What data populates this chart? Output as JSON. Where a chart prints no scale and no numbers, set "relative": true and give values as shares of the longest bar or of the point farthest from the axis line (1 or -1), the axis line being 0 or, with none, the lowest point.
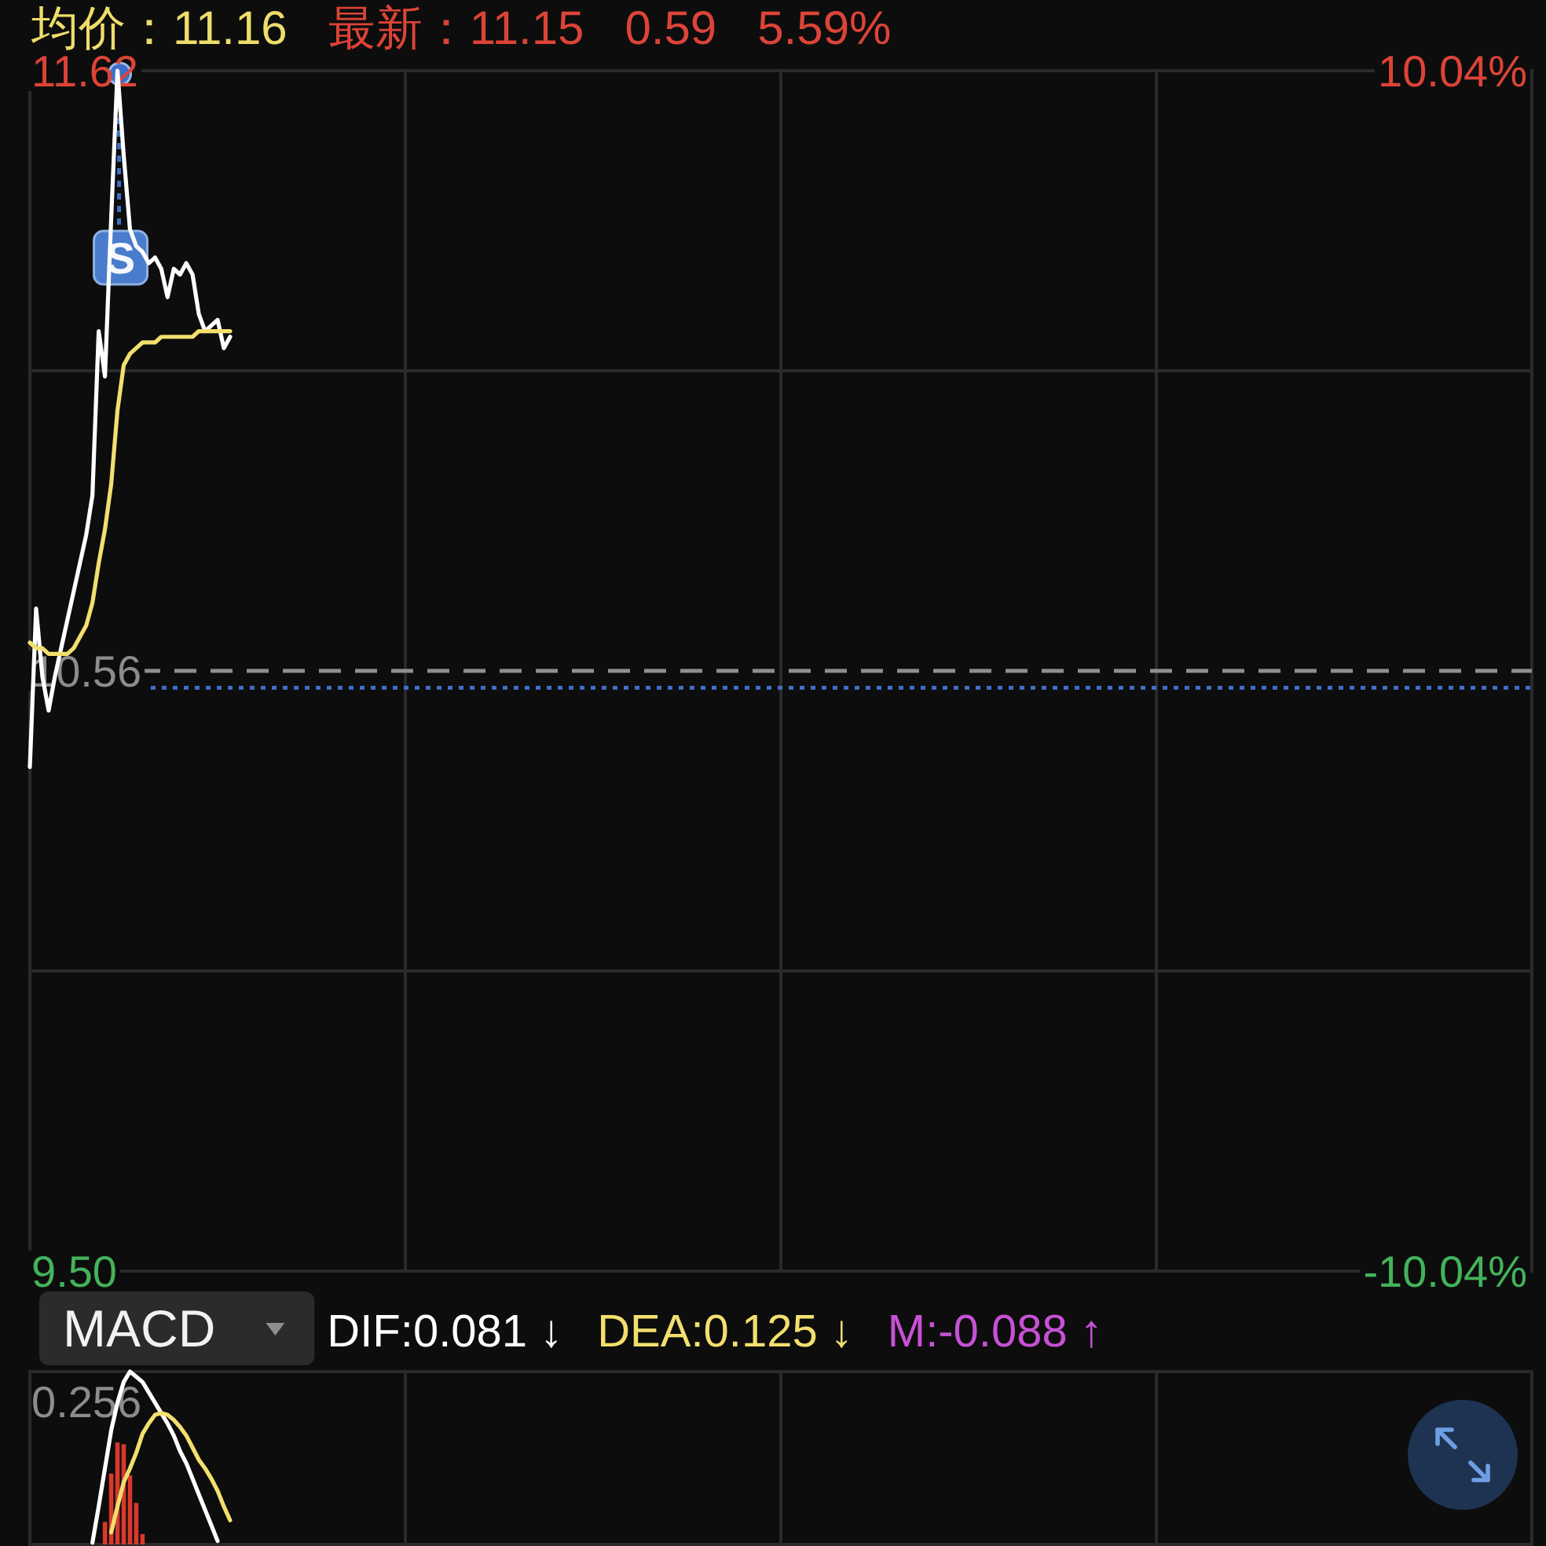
{
  "chart_data": [
    {
      "type": "line",
      "annotations": [
        "均价：11.16",
        "最新：11.15",
        "0.59",
        "5.59%",
        "S"
      ],
      "categories": [
        null,
        null,
        null,
        null,
        null,
        null,
        null,
        null,
        null,
        null,
        null,
        null,
        null,
        null,
        null,
        null,
        null,
        null,
        null,
        null,
        null,
        null,
        null,
        null,
        null,
        null,
        null,
        null,
        null,
        null,
        null,
        null,
        null,
        null,
        null,
        null,
        null,
        null,
        null,
        null,
        null,
        null,
        null,
        null,
        null,
        null,
        null,
        null,
        null,
        null,
        null,
        null,
        null,
        null,
        null,
        null,
        null,
        null,
        null,
        null,
        null,
        null,
        null,
        null,
        null,
        null,
        null,
        null,
        null,
        null,
        null,
        null,
        null,
        null,
        null,
        null,
        null,
        null,
        null,
        null,
        null,
        null,
        null,
        null,
        null,
        null,
        null,
        null,
        null,
        null,
        null,
        null,
        null,
        null,
        null,
        null,
        null,
        null,
        null,
        null,
        null,
        null,
        null,
        null,
        null,
        null,
        null,
        null,
        null,
        null,
        null,
        null,
        null,
        null,
        null,
        null,
        null,
        null,
        null,
        null,
        null,
        null,
        null,
        null,
        null,
        null,
        null,
        null,
        null,
        null,
        null,
        null,
        null,
        null,
        null,
        null,
        null,
        null,
        null,
        null,
        null,
        null,
        null,
        null,
        null,
        null,
        null,
        null,
        null,
        null,
        null,
        null,
        null,
        null,
        null,
        null,
        null,
        null,
        null,
        null,
        null,
        null,
        null,
        null,
        null,
        null,
        null,
        null,
        null,
        null,
        null,
        null,
        null,
        null,
        null,
        null,
        null,
        null,
        null,
        null,
        null,
        null,
        null,
        null,
        null,
        null,
        null,
        null,
        null,
        null,
        null,
        null,
        null,
        null,
        null,
        null,
        null,
        null,
        null,
        null,
        null,
        null,
        null,
        null,
        null,
        null,
        null,
        null,
        null,
        null,
        null,
        null,
        null,
        null,
        null,
        null,
        null,
        null,
        null,
        null,
        null,
        null,
        null,
        null,
        null,
        null,
        null,
        null,
        null,
        null,
        null,
        null,
        null,
        null,
        null,
        null,
        null,
        null,
        null,
        null,
        null
      ],
      "series": [
        {
          "color": "#ffffff",
          "values": [
            10.39,
            10.67,
            10.55,
            10.49,
            10.55,
            10.6,
            10.65,
            10.7,
            10.75,
            10.8,
            10.87,
            11.16,
            11.08,
            11.36,
            11.62,
            11.47,
            11.34,
            11.31,
            11.3,
            11.28,
            11.29,
            11.27,
            11.22,
            11.27,
            11.26,
            11.28,
            11.26,
            11.19,
            11.16,
            11.17,
            11.18,
            11.13,
            11.15,
            null,
            null,
            null,
            null,
            null,
            null,
            null,
            null,
            null,
            null,
            null,
            null,
            null,
            null,
            null,
            null,
            null,
            null,
            null,
            null,
            null,
            null,
            null,
            null,
            null,
            null,
            null,
            null,
            null,
            null,
            null,
            null,
            null,
            null,
            null,
            null,
            null,
            null,
            null,
            null,
            null,
            null,
            null,
            null,
            null,
            null,
            null,
            null,
            null,
            null,
            null,
            null,
            null,
            null,
            null,
            null,
            null,
            null,
            null,
            null,
            null,
            null,
            null,
            null,
            null,
            null,
            null,
            null,
            null,
            null,
            null,
            null,
            null,
            null,
            null,
            null,
            null,
            null,
            null,
            null,
            null,
            null,
            null,
            null,
            null,
            null,
            null,
            null,
            null,
            null,
            null,
            null,
            null,
            null,
            null,
            null,
            null,
            null,
            null,
            null,
            null,
            null,
            null,
            null,
            null,
            null,
            null,
            null,
            null,
            null,
            null,
            null,
            null,
            null,
            null,
            null,
            null,
            null,
            null,
            null,
            null,
            null,
            null,
            null,
            null,
            null,
            null,
            null,
            null,
            null,
            null,
            null,
            null,
            null,
            null,
            null,
            null,
            null,
            null,
            null,
            null,
            null,
            null,
            null,
            null,
            null,
            null,
            null,
            null,
            null,
            null,
            null,
            null,
            null,
            null,
            null,
            null,
            null,
            null,
            null,
            null,
            null,
            null,
            null,
            null,
            null,
            null,
            null,
            null,
            null,
            null,
            null,
            null,
            null,
            null,
            null,
            null,
            null,
            null,
            null,
            null,
            null,
            null,
            null,
            null,
            null,
            null,
            null,
            null,
            null,
            null,
            null,
            null,
            null,
            null,
            null,
            null,
            null,
            null,
            null,
            null,
            null,
            null,
            null,
            null,
            null,
            null,
            null
          ]
        },
        {
          "color": "#f2df6e",
          "values": [
            10.61,
            10.6,
            10.6,
            10.59,
            10.59,
            10.59,
            10.59,
            10.6,
            10.62,
            10.64,
            10.68,
            10.75,
            10.81,
            10.89,
            11.02,
            11.1,
            11.12,
            11.13,
            11.14,
            11.14,
            11.14,
            11.15,
            11.15,
            11.15,
            11.15,
            11.15,
            11.15,
            11.16,
            11.16,
            11.16,
            11.16,
            11.16,
            11.16,
            null,
            null,
            null,
            null,
            null,
            null,
            null,
            null,
            null,
            null,
            null,
            null,
            null,
            null,
            null,
            null,
            null,
            null,
            null,
            null,
            null,
            null,
            null,
            null,
            null,
            null,
            null,
            null,
            null,
            null,
            null,
            null,
            null,
            null,
            null,
            null,
            null,
            null,
            null,
            null,
            null,
            null,
            null,
            null,
            null,
            null,
            null,
            null,
            null,
            null,
            null,
            null,
            null,
            null,
            null,
            null,
            null,
            null,
            null,
            null,
            null,
            null,
            null,
            null,
            null,
            null,
            null,
            null,
            null,
            null,
            null,
            null,
            null,
            null,
            null,
            null,
            null,
            null,
            null,
            null,
            null,
            null,
            null,
            null,
            null,
            null,
            null,
            null,
            null,
            null,
            null,
            null,
            null,
            null,
            null,
            null,
            null,
            null,
            null,
            null,
            null,
            null,
            null,
            null,
            null,
            null,
            null,
            null,
            null,
            null,
            null,
            null,
            null,
            null,
            null,
            null,
            null,
            null,
            null,
            null,
            null,
            null,
            null,
            null,
            null,
            null,
            null,
            null,
            null,
            null,
            null,
            null,
            null,
            null,
            null,
            null,
            null,
            null,
            null,
            null,
            null,
            null,
            null,
            null,
            null,
            null,
            null,
            null,
            null,
            null,
            null,
            null,
            null,
            null,
            null,
            null,
            null,
            null,
            null,
            null,
            null,
            null,
            null,
            null,
            null,
            null,
            null,
            null,
            null,
            null,
            null,
            null,
            null,
            null,
            null,
            null,
            null,
            null,
            null,
            null,
            null,
            null,
            null,
            null,
            null,
            null,
            null,
            null,
            null,
            null,
            null,
            null,
            null,
            null,
            null,
            null,
            null,
            null,
            null,
            null,
            null,
            null,
            null,
            null,
            null,
            null,
            null,
            null
          ]
        }
      ],
      "ylim": [
        9.5,
        11.62
      ],
      "yticks": [
        {
          "value": 9.5,
          "label": "9.50"
        },
        10.56,
        11.62
      ],
      "y2lim": [
        -10.04,
        10.04
      ],
      "y2ticks": [
        {
          "value": -10.04,
          "label": "-10.04%"
        },
        {
          "value": 10.04,
          "label": "10.04%"
        }
      ],
      "ref_lines": [
        {
          "axis": "y",
          "value": 10.56,
          "color": "#8f8f8f",
          "line_style": "dashed"
        },
        {
          "axis": "y",
          "value": 10.53,
          "color": "#3c6ec6",
          "line_style": "dotted"
        }
      ],
      "grid": true
    },
    {
      "type": "line",
      "title": "MACD",
      "relative": true,
      "annotations": [
        "DIF:0.081 ↓",
        "DEA:0.125 ↓",
        "M:-0.088 ↑",
        "0.256"
      ],
      "categories": [
        null,
        null,
        null,
        null,
        null,
        null,
        null,
        null,
        null,
        null,
        null,
        null,
        null,
        null,
        null,
        null,
        null,
        null,
        null,
        null,
        null,
        null,
        null,
        null,
        null,
        null,
        null,
        null,
        null,
        null,
        null,
        null,
        null,
        null,
        null,
        null,
        null,
        null,
        null,
        null,
        null,
        null,
        null,
        null,
        null,
        null,
        null,
        null,
        null,
        null,
        null,
        null,
        null,
        null,
        null,
        null,
        null,
        null,
        null,
        null,
        null,
        null,
        null,
        null,
        null,
        null,
        null,
        null,
        null,
        null,
        null,
        null,
        null,
        null,
        null,
        null,
        null,
        null,
        null,
        null,
        null,
        null,
        null,
        null,
        null,
        null,
        null,
        null,
        null,
        null,
        null,
        null,
        null,
        null,
        null,
        null,
        null,
        null,
        null,
        null,
        null,
        null,
        null,
        null,
        null,
        null,
        null,
        null,
        null,
        null,
        null,
        null,
        null,
        null,
        null,
        null,
        null,
        null,
        null,
        null,
        null,
        null,
        null,
        null,
        null,
        null,
        null,
        null,
        null,
        null,
        null,
        null,
        null,
        null,
        null,
        null,
        null,
        null,
        null,
        null,
        null,
        null,
        null,
        null,
        null,
        null,
        null,
        null,
        null,
        null,
        null,
        null,
        null,
        null,
        null,
        null,
        null,
        null,
        null,
        null,
        null,
        null,
        null,
        null,
        null,
        null,
        null,
        null,
        null,
        null,
        null,
        null,
        null,
        null,
        null,
        null,
        null,
        null,
        null,
        null,
        null,
        null,
        null,
        null,
        null,
        null,
        null,
        null,
        null,
        null,
        null,
        null,
        null,
        null,
        null,
        null,
        null,
        null,
        null,
        null,
        null,
        null,
        null,
        null,
        null,
        null,
        null,
        null,
        null,
        null,
        null,
        null,
        null,
        null,
        null,
        null,
        null,
        null,
        null,
        null,
        null,
        null,
        null,
        null,
        null,
        null,
        null,
        null,
        null,
        null,
        null,
        null,
        null,
        null,
        null,
        null,
        null,
        null,
        null,
        null,
        null
      ],
      "series": [
        {
          "color": "#ffffff",
          "values": [
            null,
            null,
            null,
            null,
            null,
            null,
            null,
            null,
            null,
            null,
            0.01,
            0.22,
            0.44,
            0.66,
            0.82,
            0.94,
            1,
            0.97,
            0.94,
            0.88,
            0.82,
            0.76,
            0.7,
            0.63,
            0.54,
            0.47,
            0.38,
            0.29,
            0.2,
            0.11,
            0.02,
            null,
            null,
            null,
            null,
            null,
            null,
            null,
            null,
            null,
            null,
            null,
            null,
            null,
            null,
            null,
            null,
            null,
            null,
            null,
            null,
            null,
            null,
            null,
            null,
            null,
            null,
            null,
            null,
            null,
            null,
            null,
            null,
            null,
            null,
            null,
            null,
            null,
            null,
            null,
            null,
            null,
            null,
            null,
            null,
            null,
            null,
            null,
            null,
            null,
            null,
            null,
            null,
            null,
            null,
            null,
            null,
            null,
            null,
            null,
            null,
            null,
            null,
            null,
            null,
            null,
            null,
            null,
            null,
            null,
            null,
            null,
            null,
            null,
            null,
            null,
            null,
            null,
            null,
            null,
            null,
            null,
            null,
            null,
            null,
            null,
            null,
            null,
            null,
            null,
            null,
            null,
            null,
            null,
            null,
            null,
            null,
            null,
            null,
            null,
            null,
            null,
            null,
            null,
            null,
            null,
            null,
            null,
            null,
            null,
            null,
            null,
            null,
            null,
            null,
            null,
            null,
            null,
            null,
            null,
            null,
            null,
            null,
            null,
            null,
            null,
            null,
            null,
            null,
            null,
            null,
            null,
            null,
            null,
            null,
            null,
            null,
            null,
            null,
            null,
            null,
            null,
            null,
            null,
            null,
            null,
            null,
            null,
            null,
            null,
            null,
            null,
            null,
            null,
            null,
            null,
            null,
            null,
            null,
            null,
            null,
            null,
            null,
            null,
            null,
            null,
            null,
            null,
            null,
            null,
            null,
            null,
            null,
            null,
            null,
            null,
            null,
            null,
            null,
            null,
            null,
            null,
            null,
            null,
            null,
            null,
            null,
            null,
            null,
            null,
            null,
            null,
            null,
            null,
            null,
            null,
            null,
            null,
            null,
            null,
            null,
            null,
            null,
            null,
            null,
            null,
            null,
            null,
            null,
            null,
            null
          ]
        },
        {
          "color": "#f2df6e",
          "values": [
            null,
            null,
            null,
            null,
            null,
            null,
            null,
            null,
            null,
            null,
            null,
            null,
            null,
            0.07,
            0.22,
            0.36,
            0.44,
            0.53,
            0.64,
            0.7,
            0.75,
            0.76,
            0.75,
            0.72,
            0.68,
            0.63,
            0.56,
            0.49,
            0.44,
            0.38,
            0.31,
            0.22,
            0.14,
            null,
            null,
            null,
            null,
            null,
            null,
            null,
            null,
            null,
            null,
            null,
            null,
            null,
            null,
            null,
            null,
            null,
            null,
            null,
            null,
            null,
            null,
            null,
            null,
            null,
            null,
            null,
            null,
            null,
            null,
            null,
            null,
            null,
            null,
            null,
            null,
            null,
            null,
            null,
            null,
            null,
            null,
            null,
            null,
            null,
            null,
            null,
            null,
            null,
            null,
            null,
            null,
            null,
            null,
            null,
            null,
            null,
            null,
            null,
            null,
            null,
            null,
            null,
            null,
            null,
            null,
            null,
            null,
            null,
            null,
            null,
            null,
            null,
            null,
            null,
            null,
            null,
            null,
            null,
            null,
            null,
            null,
            null,
            null,
            null,
            null,
            null,
            null,
            null,
            null,
            null,
            null,
            null,
            null,
            null,
            null,
            null,
            null,
            null,
            null,
            null,
            null,
            null,
            null,
            null,
            null,
            null,
            null,
            null,
            null,
            null,
            null,
            null,
            null,
            null,
            null,
            null,
            null,
            null,
            null,
            null,
            null,
            null,
            null,
            null,
            null,
            null,
            null,
            null,
            null,
            null,
            null,
            null,
            null,
            null,
            null,
            null,
            null,
            null,
            null,
            null,
            null,
            null,
            null,
            null,
            null,
            null,
            null,
            null,
            null,
            null,
            null,
            null,
            null,
            null,
            null,
            null,
            null,
            null,
            null,
            null,
            null,
            null,
            null,
            null,
            null,
            null,
            null,
            null,
            null,
            null,
            null,
            null,
            null,
            null,
            null,
            null,
            null,
            null,
            null,
            null,
            null,
            null,
            null,
            null,
            null,
            null,
            null,
            null,
            null,
            null,
            null,
            null,
            null,
            null,
            null,
            null,
            null,
            null,
            null,
            null,
            null,
            null,
            null,
            null,
            null,
            null,
            null
          ]
        },
        {
          "type": "bar",
          "color": "#d8392c",
          "values": [
            null,
            null,
            null,
            null,
            null,
            null,
            null,
            null,
            null,
            null,
            null,
            null,
            0.13,
            0.41,
            0.59,
            0.58,
            0.4,
            0.24,
            0.06,
            null,
            null,
            null,
            null,
            null,
            null,
            null,
            null,
            null,
            null,
            null,
            null,
            null,
            null,
            null,
            null,
            null,
            null,
            null,
            null,
            null,
            null,
            null,
            null,
            null,
            null,
            null,
            null,
            null,
            null,
            null,
            null,
            null,
            null,
            null,
            null,
            null,
            null,
            null,
            null,
            null,
            null,
            null,
            null,
            null,
            null,
            null,
            null,
            null,
            null,
            null,
            null,
            null,
            null,
            null,
            null,
            null,
            null,
            null,
            null,
            null,
            null,
            null,
            null,
            null,
            null,
            null,
            null,
            null,
            null,
            null,
            null,
            null,
            null,
            null,
            null,
            null,
            null,
            null,
            null,
            null,
            null,
            null,
            null,
            null,
            null,
            null,
            null,
            null,
            null,
            null,
            null,
            null,
            null,
            null,
            null,
            null,
            null,
            null,
            null,
            null,
            null,
            null,
            null,
            null,
            null,
            null,
            null,
            null,
            null,
            null,
            null,
            null,
            null,
            null,
            null,
            null,
            null,
            null,
            null,
            null,
            null,
            null,
            null,
            null,
            null,
            null,
            null,
            null,
            null,
            null,
            null,
            null,
            null,
            null,
            null,
            null,
            null,
            null,
            null,
            null,
            null,
            null,
            null,
            null,
            null,
            null,
            null,
            null,
            null,
            null,
            null,
            null,
            null,
            null,
            null,
            null,
            null,
            null,
            null,
            null,
            null,
            null,
            null,
            null,
            null,
            null,
            null,
            null,
            null,
            null,
            null,
            null,
            null,
            null,
            null,
            null,
            null,
            null,
            null,
            null,
            null,
            null,
            null,
            null,
            null,
            null,
            null,
            null,
            null,
            null,
            null,
            null,
            null,
            null,
            null,
            null,
            null,
            null,
            null,
            null,
            null,
            null,
            null,
            null,
            null,
            null,
            null,
            null,
            null,
            null,
            null,
            null,
            null,
            null,
            null,
            null,
            null,
            null,
            null,
            null,
            null
          ]
        }
      ],
      "grid": "x"
    }
  ]
}
